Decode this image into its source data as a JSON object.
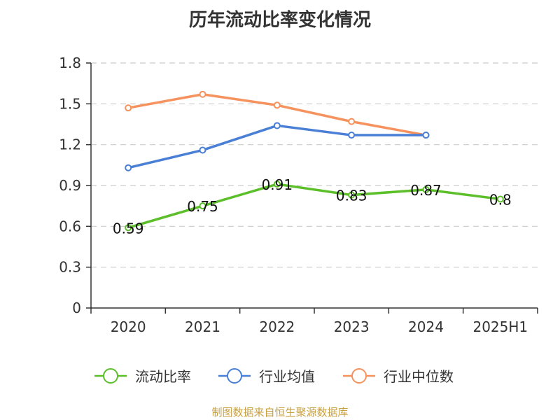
{
  "chart_data": {
    "type": "line",
    "title": "历年流动比率变化情况",
    "categories": [
      "2020",
      "2021",
      "2022",
      "2023",
      "2024",
      "2025H1"
    ],
    "ylim": [
      0,
      1.8
    ],
    "yticks": [
      "0",
      "0.3",
      "0.6",
      "0.9",
      "1.2",
      "1.5",
      "1.8"
    ],
    "grid": true,
    "legend_position": "bottom",
    "series": [
      {
        "name": "流动比率",
        "color": "#5cbf2a",
        "values": [
          0.59,
          0.75,
          0.91,
          0.83,
          0.87,
          0.8
        ],
        "labels": [
          "0.59",
          "0.75",
          "0.91",
          "0.83",
          "0.87",
          "0.8"
        ]
      },
      {
        "name": "行业均值",
        "color": "#4a7fd6",
        "values": [
          1.03,
          1.16,
          1.34,
          1.27,
          1.27,
          null
        ]
      },
      {
        "name": "行业中位数",
        "color": "#f5925e",
        "values": [
          1.47,
          1.57,
          1.49,
          1.37,
          1.27,
          null
        ]
      }
    ],
    "source": "制图数据来自恒生聚源数据库"
  }
}
